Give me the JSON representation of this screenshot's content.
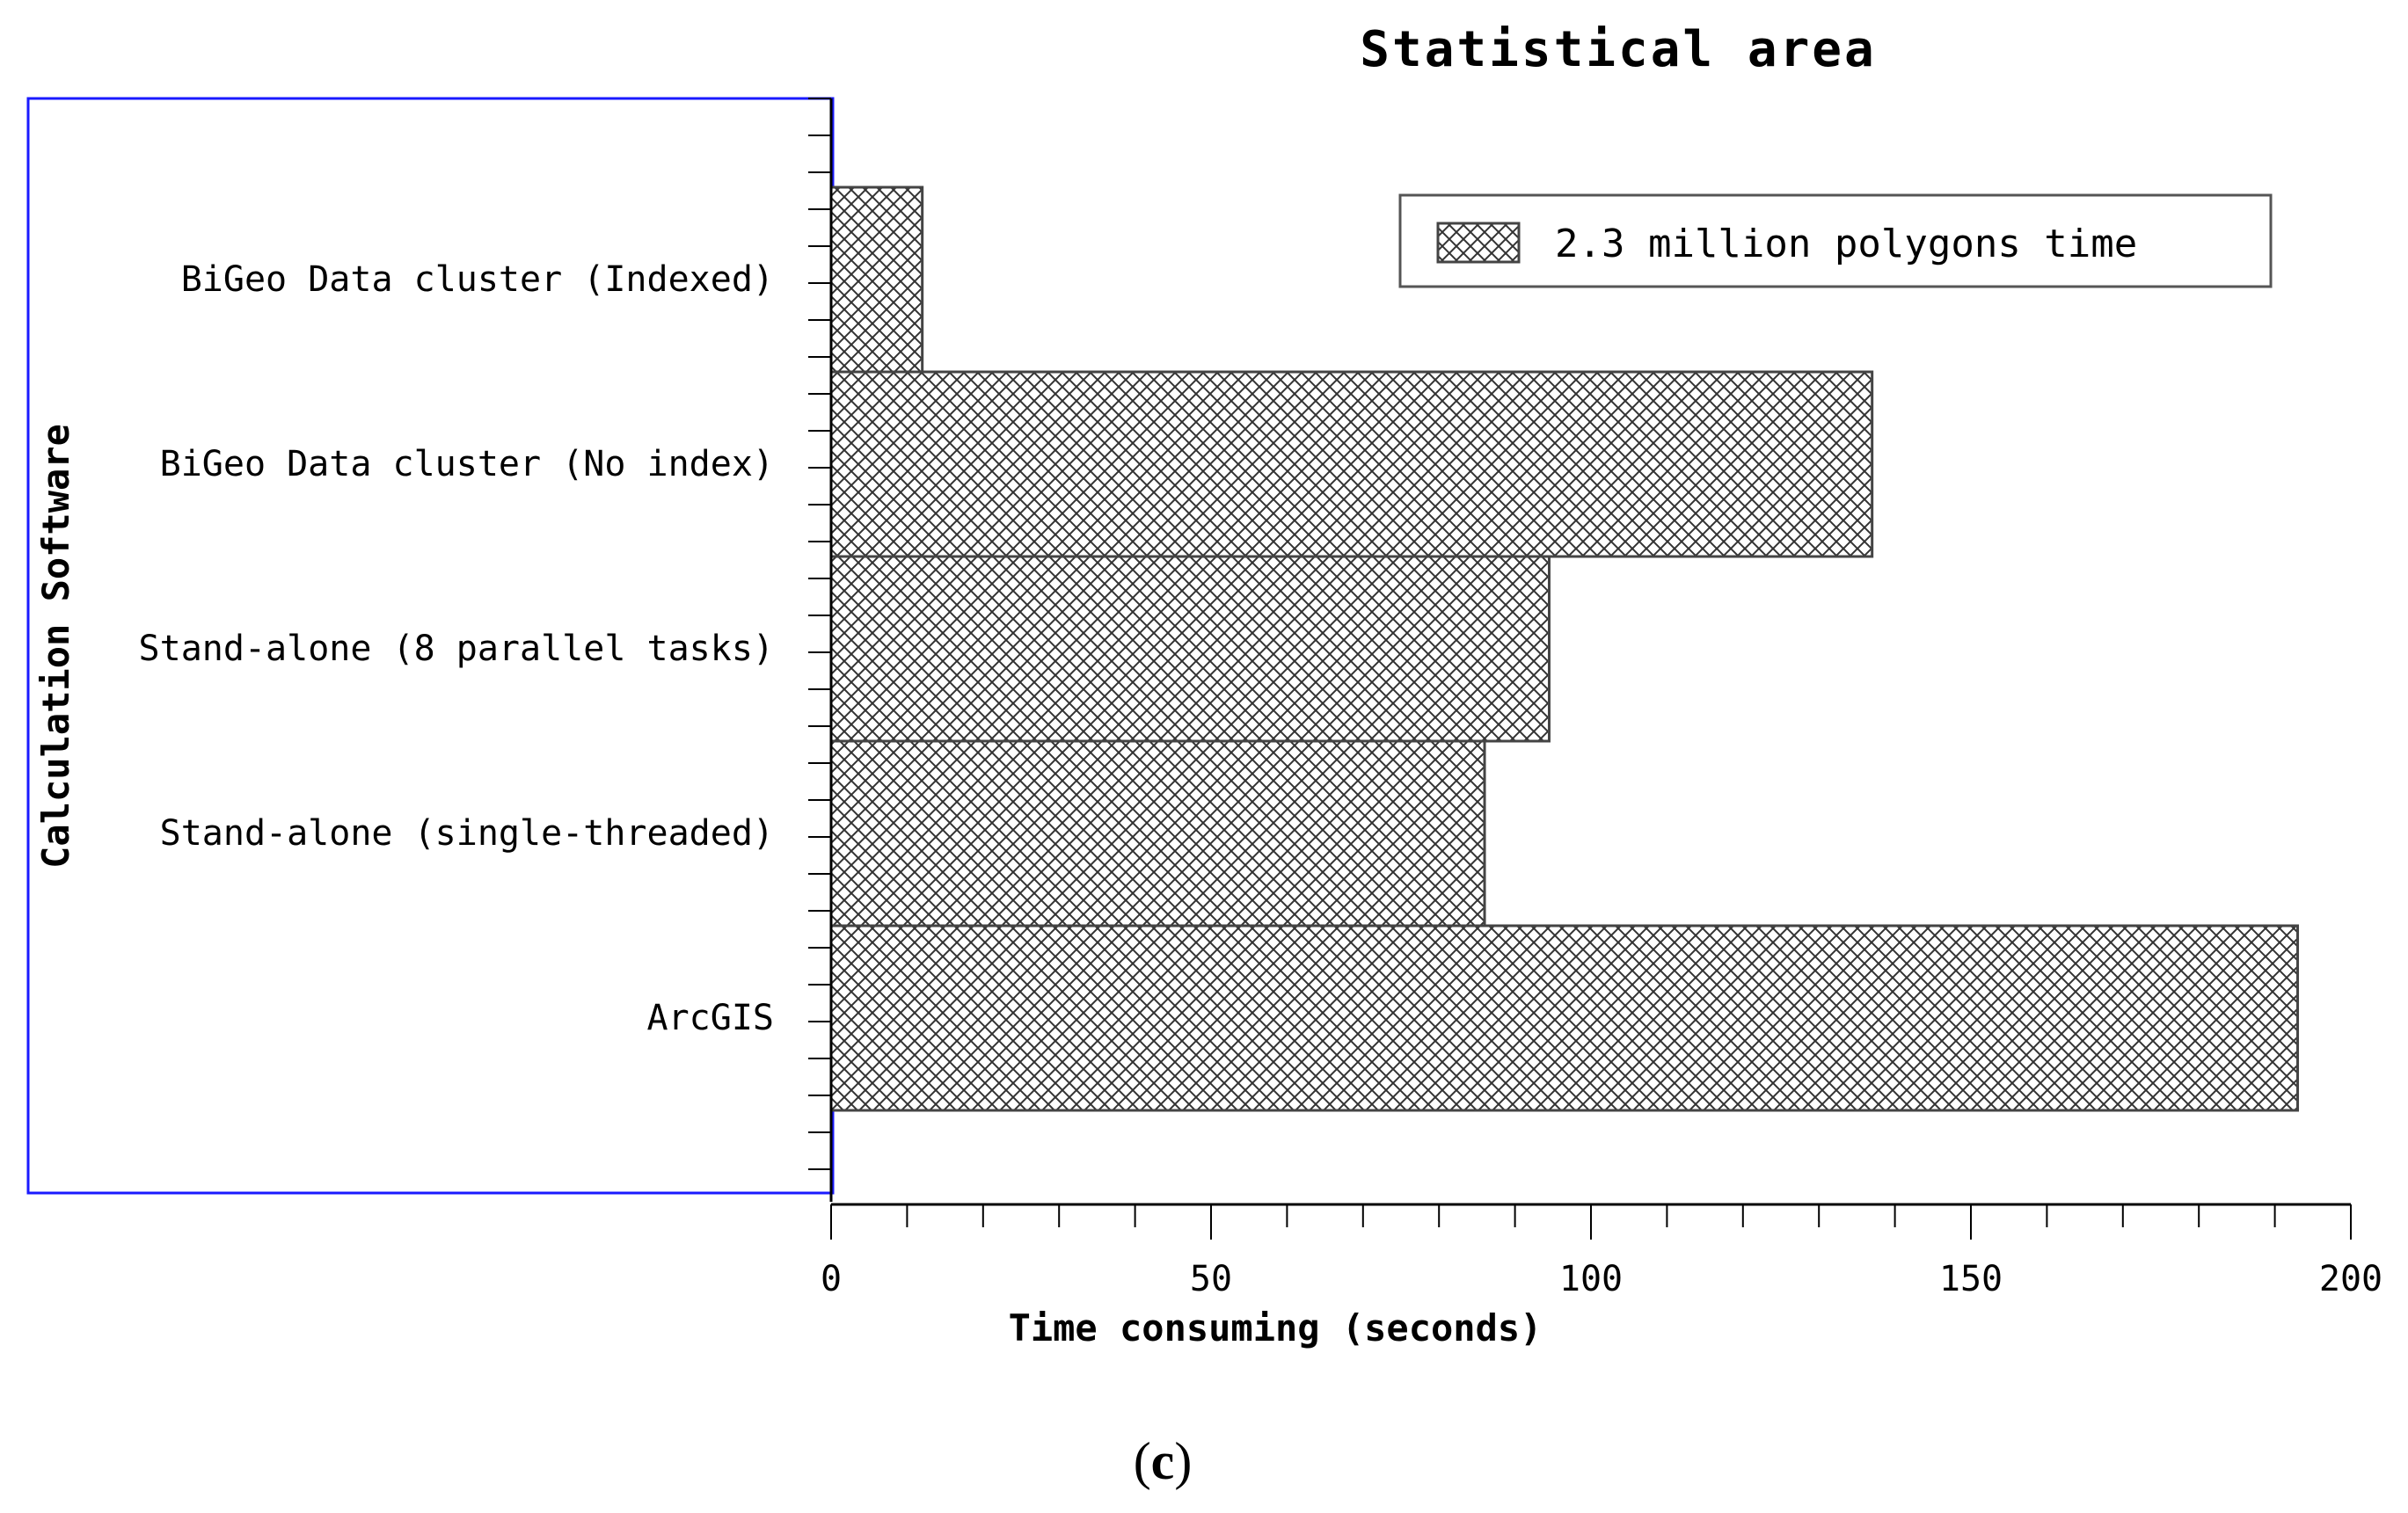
{
  "chart_data": {
    "type": "bar",
    "orientation": "horizontal",
    "title": "Statistical area",
    "xlabel": "Time consuming (seconds)",
    "ylabel": "Calculation Software",
    "xlim": [
      0,
      200
    ],
    "x_ticks": [
      0,
      50,
      100,
      150,
      200
    ],
    "categories": [
      "BiGeo Data cluster (Indexed)",
      "BiGeo Data cluster (No index)",
      "Stand-alone (8 parallel tasks)",
      "Stand-alone (single-threaded)",
      "ArcGIS"
    ],
    "series": [
      {
        "name": "2.3 million polygons time",
        "values": [
          12,
          137,
          94.5,
          86,
          193
        ]
      }
    ],
    "legend_position": "top-right",
    "grid": false,
    "bar_fill": "crosshatch"
  },
  "caption": {
    "open": "(",
    "letter": "c",
    "close": ")"
  },
  "colors": {
    "bar_stroke": "#444444",
    "hatch": "#333333",
    "frame_blue": "#1a1aff",
    "axis": "#000000"
  }
}
